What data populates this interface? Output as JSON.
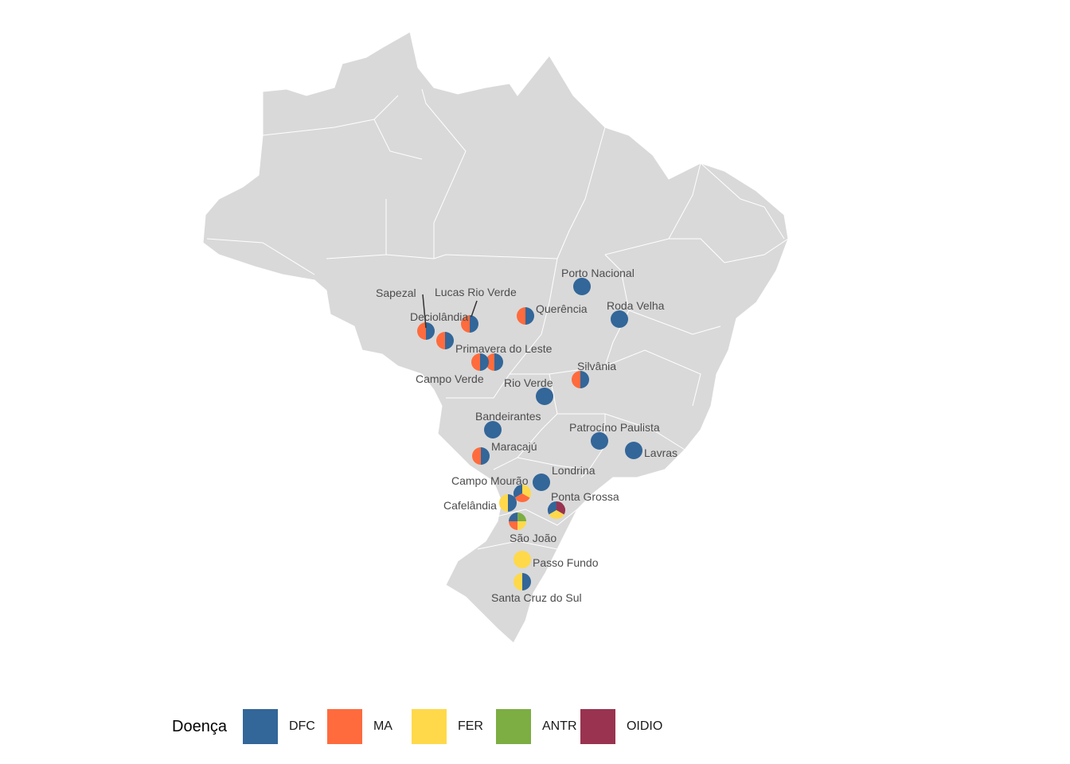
{
  "legend": {
    "title": "Doença",
    "items": [
      {
        "label": "DFC",
        "color": "#336699"
      },
      {
        "label": "MA",
        "color": "#FF6B3D"
      },
      {
        "label": "FER",
        "color": "#FFD94A"
      },
      {
        "label": "ANTR",
        "color": "#7CAE44"
      },
      {
        "label": "OIDIO",
        "color": "#993350"
      }
    ]
  },
  "map": {
    "background_color": "#D9D9D9",
    "border_color": "#FFFFFF"
  },
  "locations": [
    {
      "name": "Porto Nacional",
      "diseases": [
        "DFC"
      ]
    },
    {
      "name": "Roda Velha",
      "diseases": [
        "DFC"
      ]
    },
    {
      "name": "Sapezal",
      "diseases": [
        "MA",
        "DFC"
      ]
    },
    {
      "name": "Lucas Rio Verde",
      "diseases": [
        "MA",
        "DFC"
      ]
    },
    {
      "name": "Deciolândia",
      "diseases": [
        "MA",
        "DFC"
      ]
    },
    {
      "name": "Querência",
      "diseases": [
        "MA",
        "DFC"
      ]
    },
    {
      "name": "Primavera do Leste",
      "diseases": [
        "MA",
        "DFC"
      ]
    },
    {
      "name": "Campo Verde",
      "diseases": [
        "MA",
        "DFC"
      ]
    },
    {
      "name": "Silvânia",
      "diseases": [
        "MA",
        "DFC"
      ]
    },
    {
      "name": "Rio Verde",
      "diseases": [
        "DFC"
      ]
    },
    {
      "name": "Bandeirantes",
      "diseases": [
        "DFC"
      ]
    },
    {
      "name": "Patrocíno Paulista",
      "diseases": [
        "DFC"
      ]
    },
    {
      "name": "Lavras",
      "diseases": [
        "DFC"
      ]
    },
    {
      "name": "Maracajú",
      "diseases": [
        "MA",
        "DFC"
      ]
    },
    {
      "name": "Londrina",
      "diseases": [
        "DFC"
      ]
    },
    {
      "name": "Campo Mourão",
      "diseases": [
        "DFC",
        "MA",
        "FER"
      ]
    },
    {
      "name": "Cafelândia",
      "diseases": [
        "FER",
        "DFC"
      ]
    },
    {
      "name": "Ponta Grossa",
      "diseases": [
        "DFC",
        "FER",
        "OIDIO"
      ]
    },
    {
      "name": "São João",
      "diseases": [
        "DFC",
        "MA",
        "FER",
        "ANTR"
      ]
    },
    {
      "name": "Passo Fundo",
      "diseases": [
        "FER"
      ]
    },
    {
      "name": "Santa Cruz do Sul",
      "diseases": [
        "FER",
        "DFC"
      ]
    }
  ]
}
